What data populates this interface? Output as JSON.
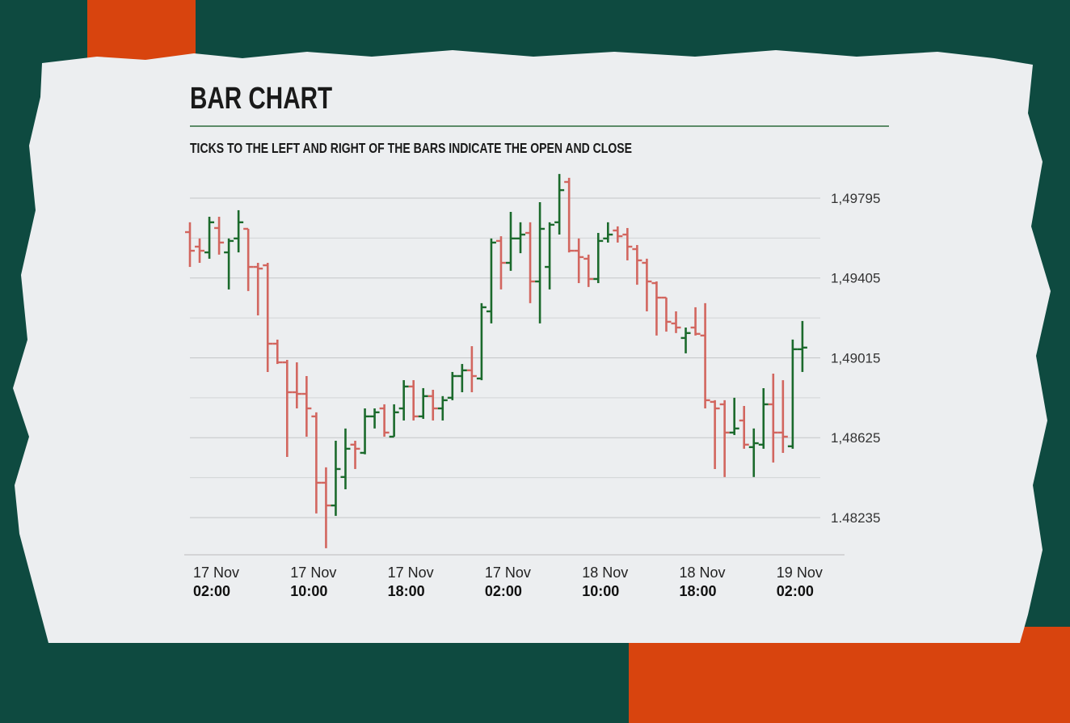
{
  "chart_data": {
    "type": "ohlc",
    "title": "BAR CHART",
    "subtitle": "TICKS TO THE LEFT AND RIGHT OF THE BARS INDICATE THE OPEN AND CLOSE",
    "categories": [
      [
        "17 Nov",
        "02:00"
      ],
      null,
      null,
      null,
      null,
      null,
      null,
      null,
      null,
      null,
      [
        "17 Nov",
        "10:00"
      ],
      null,
      null,
      null,
      null,
      null,
      null,
      null,
      null,
      null,
      [
        "17 Nov",
        "18:00"
      ],
      null,
      null,
      null,
      null,
      null,
      null,
      null,
      null,
      null,
      [
        "17 Nov",
        "02:00"
      ],
      null,
      null,
      null,
      null,
      null,
      null,
      null,
      null,
      null,
      [
        "18 Nov",
        "10:00"
      ],
      null,
      null,
      null,
      null,
      null,
      null,
      null,
      null,
      null,
      [
        "18 Nov",
        "18:00"
      ],
      null,
      null,
      null,
      null,
      null,
      null,
      null,
      null,
      null,
      [
        "19 Nov",
        "02:00"
      ],
      null,
      null,
      null
    ],
    "open": [
      1.49629,
      1.49558,
      1.4953,
      1.49649,
      1.4953,
      1.49598,
      1.49645,
      1.49459,
      1.49467,
      1.49084,
      1.48993,
      1.48847,
      1.48839,
      1.48729,
      1.48405,
      1.48294,
      1.48433,
      1.48591,
      1.48551,
      1.48729,
      1.48768,
      1.4863,
      1.48768,
      1.48875,
      1.48729,
      1.48828,
      1.48768,
      1.4882,
      1.48926,
      1.48954,
      1.48914,
      1.49242,
      1.49586,
      1.49479,
      1.49598,
      1.49625,
      1.49388,
      1.49459,
      1.49677,
      1.49874,
      1.49538,
      1.49499,
      1.494,
      1.49598,
      1.49637,
      1.49617,
      1.49546,
      1.49479,
      1.4938,
      1.49309,
      1.49183,
      1.49112,
      1.49163,
      1.49124,
      1.488,
      1.48788,
      1.4865,
      1.48709,
      1.48579,
      1.48591,
      1.48788,
      1.4865,
      1.48583,
      1.49057
    ],
    "high": [
      1.49677,
      1.49598,
      1.49704,
      1.49704,
      1.49598,
      1.49736,
      1.49645,
      1.49479,
      1.49479,
      1.49104,
      1.49005,
      1.48993,
      1.48926,
      1.48749,
      1.4848,
      1.4861,
      1.4867,
      1.4861,
      1.48768,
      1.48768,
      1.48788,
      1.48788,
      1.48906,
      1.48906,
      1.48867,
      1.48859,
      1.48828,
      1.48946,
      1.48985,
      1.49072,
      1.49282,
      1.49598,
      1.49609,
      1.49728,
      1.49677,
      1.49677,
      1.49775,
      1.49677,
      1.49913,
      1.49894,
      1.49598,
      1.49519,
      1.49625,
      1.49677,
      1.49657,
      1.49649,
      1.49566,
      1.49499,
      1.49388,
      1.49309,
      1.49242,
      1.49163,
      1.49262,
      1.49282,
      1.48808,
      1.48808,
      1.4882,
      1.4878,
      1.4867,
      1.48867,
      1.48938,
      1.48906,
      1.49104,
      1.49195
    ],
    "low": [
      1.49459,
      1.49479,
      1.49499,
      1.49519,
      1.49349,
      1.4953,
      1.49341,
      1.49222,
      1.48946,
      1.48985,
      1.48531,
      1.48768,
      1.4863,
      1.48255,
      1.48085,
      1.48243,
      1.48373,
      1.48472,
      1.48544,
      1.4867,
      1.4863,
      1.4863,
      1.48709,
      1.48709,
      1.48717,
      1.48709,
      1.48709,
      1.48808,
      1.48847,
      1.48847,
      1.48906,
      1.49183,
      1.49349,
      1.4944,
      1.49526,
      1.49282,
      1.49183,
      1.49349,
      1.49617,
      1.4953,
      1.4938,
      1.49361,
      1.4938,
      1.49578,
      1.49578,
      1.49491,
      1.49372,
      1.49242,
      1.49124,
      1.49143,
      1.49136,
      1.49037,
      1.49124,
      1.48768,
      1.48472,
      1.48433,
      1.48638,
      1.48571,
      1.48433,
      1.48571,
      1.48504,
      1.48551,
      1.48571,
      1.48946
    ],
    "close": [
      1.49538,
      1.49538,
      1.49677,
      1.49578,
      1.49586,
      1.49677,
      1.49459,
      1.49451,
      1.49084,
      1.48993,
      1.48847,
      1.48839,
      1.48768,
      1.48405,
      1.48294,
      1.48472,
      1.48571,
      1.48571,
      1.48729,
      1.48749,
      1.4865,
      1.48749,
      1.48875,
      1.48729,
      1.48828,
      1.48768,
      1.48808,
      1.48926,
      1.48954,
      1.48926,
      1.49262,
      1.49578,
      1.49479,
      1.49598,
      1.49617,
      1.49388,
      1.49645,
      1.49665,
      1.49834,
      1.49538,
      1.49507,
      1.494,
      1.49586,
      1.49617,
      1.49609,
      1.49558,
      1.49491,
      1.49388,
      1.49309,
      1.49191,
      1.49163,
      1.49136,
      1.49132,
      1.48808,
      1.48768,
      1.4865,
      1.4867,
      1.48591,
      1.48598,
      1.48788,
      1.4865,
      1.4863,
      1.49057,
      1.49065
    ],
    "up_color": "#1b6a2c",
    "down_color": "#d2665f",
    "ylim": [
      1.4808,
      1.499
    ],
    "yticks": [
      {
        "value": 1.48235,
        "label": "1.48235"
      },
      {
        "value": 1.48625,
        "label": "1,48625"
      },
      {
        "value": 1.49015,
        "label": "1,49015"
      },
      {
        "value": 1.49405,
        "label": "1,49405"
      },
      {
        "value": 1.49795,
        "label": "1,49795"
      }
    ],
    "minor_yticks": [
      1.4843,
      1.4882,
      1.4921,
      1.496
    ],
    "grid": true
  }
}
